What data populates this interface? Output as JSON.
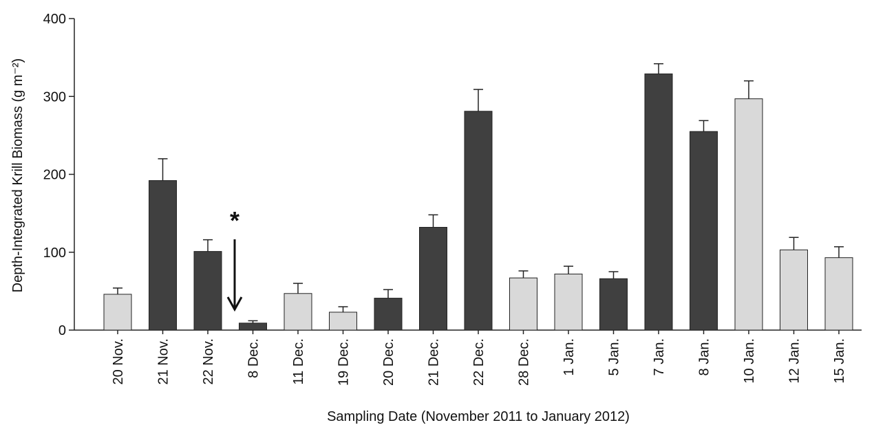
{
  "chart_data": {
    "type": "bar",
    "x_label": "Sampling Date (November 2011 to January 2012)",
    "y_label": "Depth-Integrated Krill Biomass (g m⁻²)",
    "annotation": "*",
    "categories": [
      "20 Nov.",
      "21 Nov.",
      "22 Nov.",
      "8  Dec.",
      "11 Dec.",
      "19 Dec.",
      "20 Dec.",
      "21 Dec.",
      "22 Dec.",
      "28 Dec.",
      "1 Jan.",
      "5 Jan.",
      "7 Jan.",
      "8 Jan.",
      "10 Jan.",
      "12 Jan.",
      "15 Jan."
    ],
    "values": [
      46,
      192,
      101,
      9,
      47,
      23,
      41,
      132,
      281,
      67,
      72,
      66,
      329,
      255,
      297,
      103,
      93
    ],
    "errors": [
      8,
      28,
      15,
      3,
      13,
      7,
      11,
      16,
      28,
      9,
      10,
      9,
      13,
      14,
      23,
      16,
      14
    ],
    "colors": [
      "#d9d9d9",
      "#404040",
      "#404040",
      "#404040",
      "#d9d9d9",
      "#d9d9d9",
      "#404040",
      "#404040",
      "#404040",
      "#d9d9d9",
      "#d9d9d9",
      "#404040",
      "#404040",
      "#404040",
      "#d9d9d9",
      "#d9d9d9",
      "#d9d9d9"
    ],
    "ylim": [
      0,
      400
    ],
    "yticks": [
      0,
      100,
      200,
      300,
      400
    ]
  }
}
